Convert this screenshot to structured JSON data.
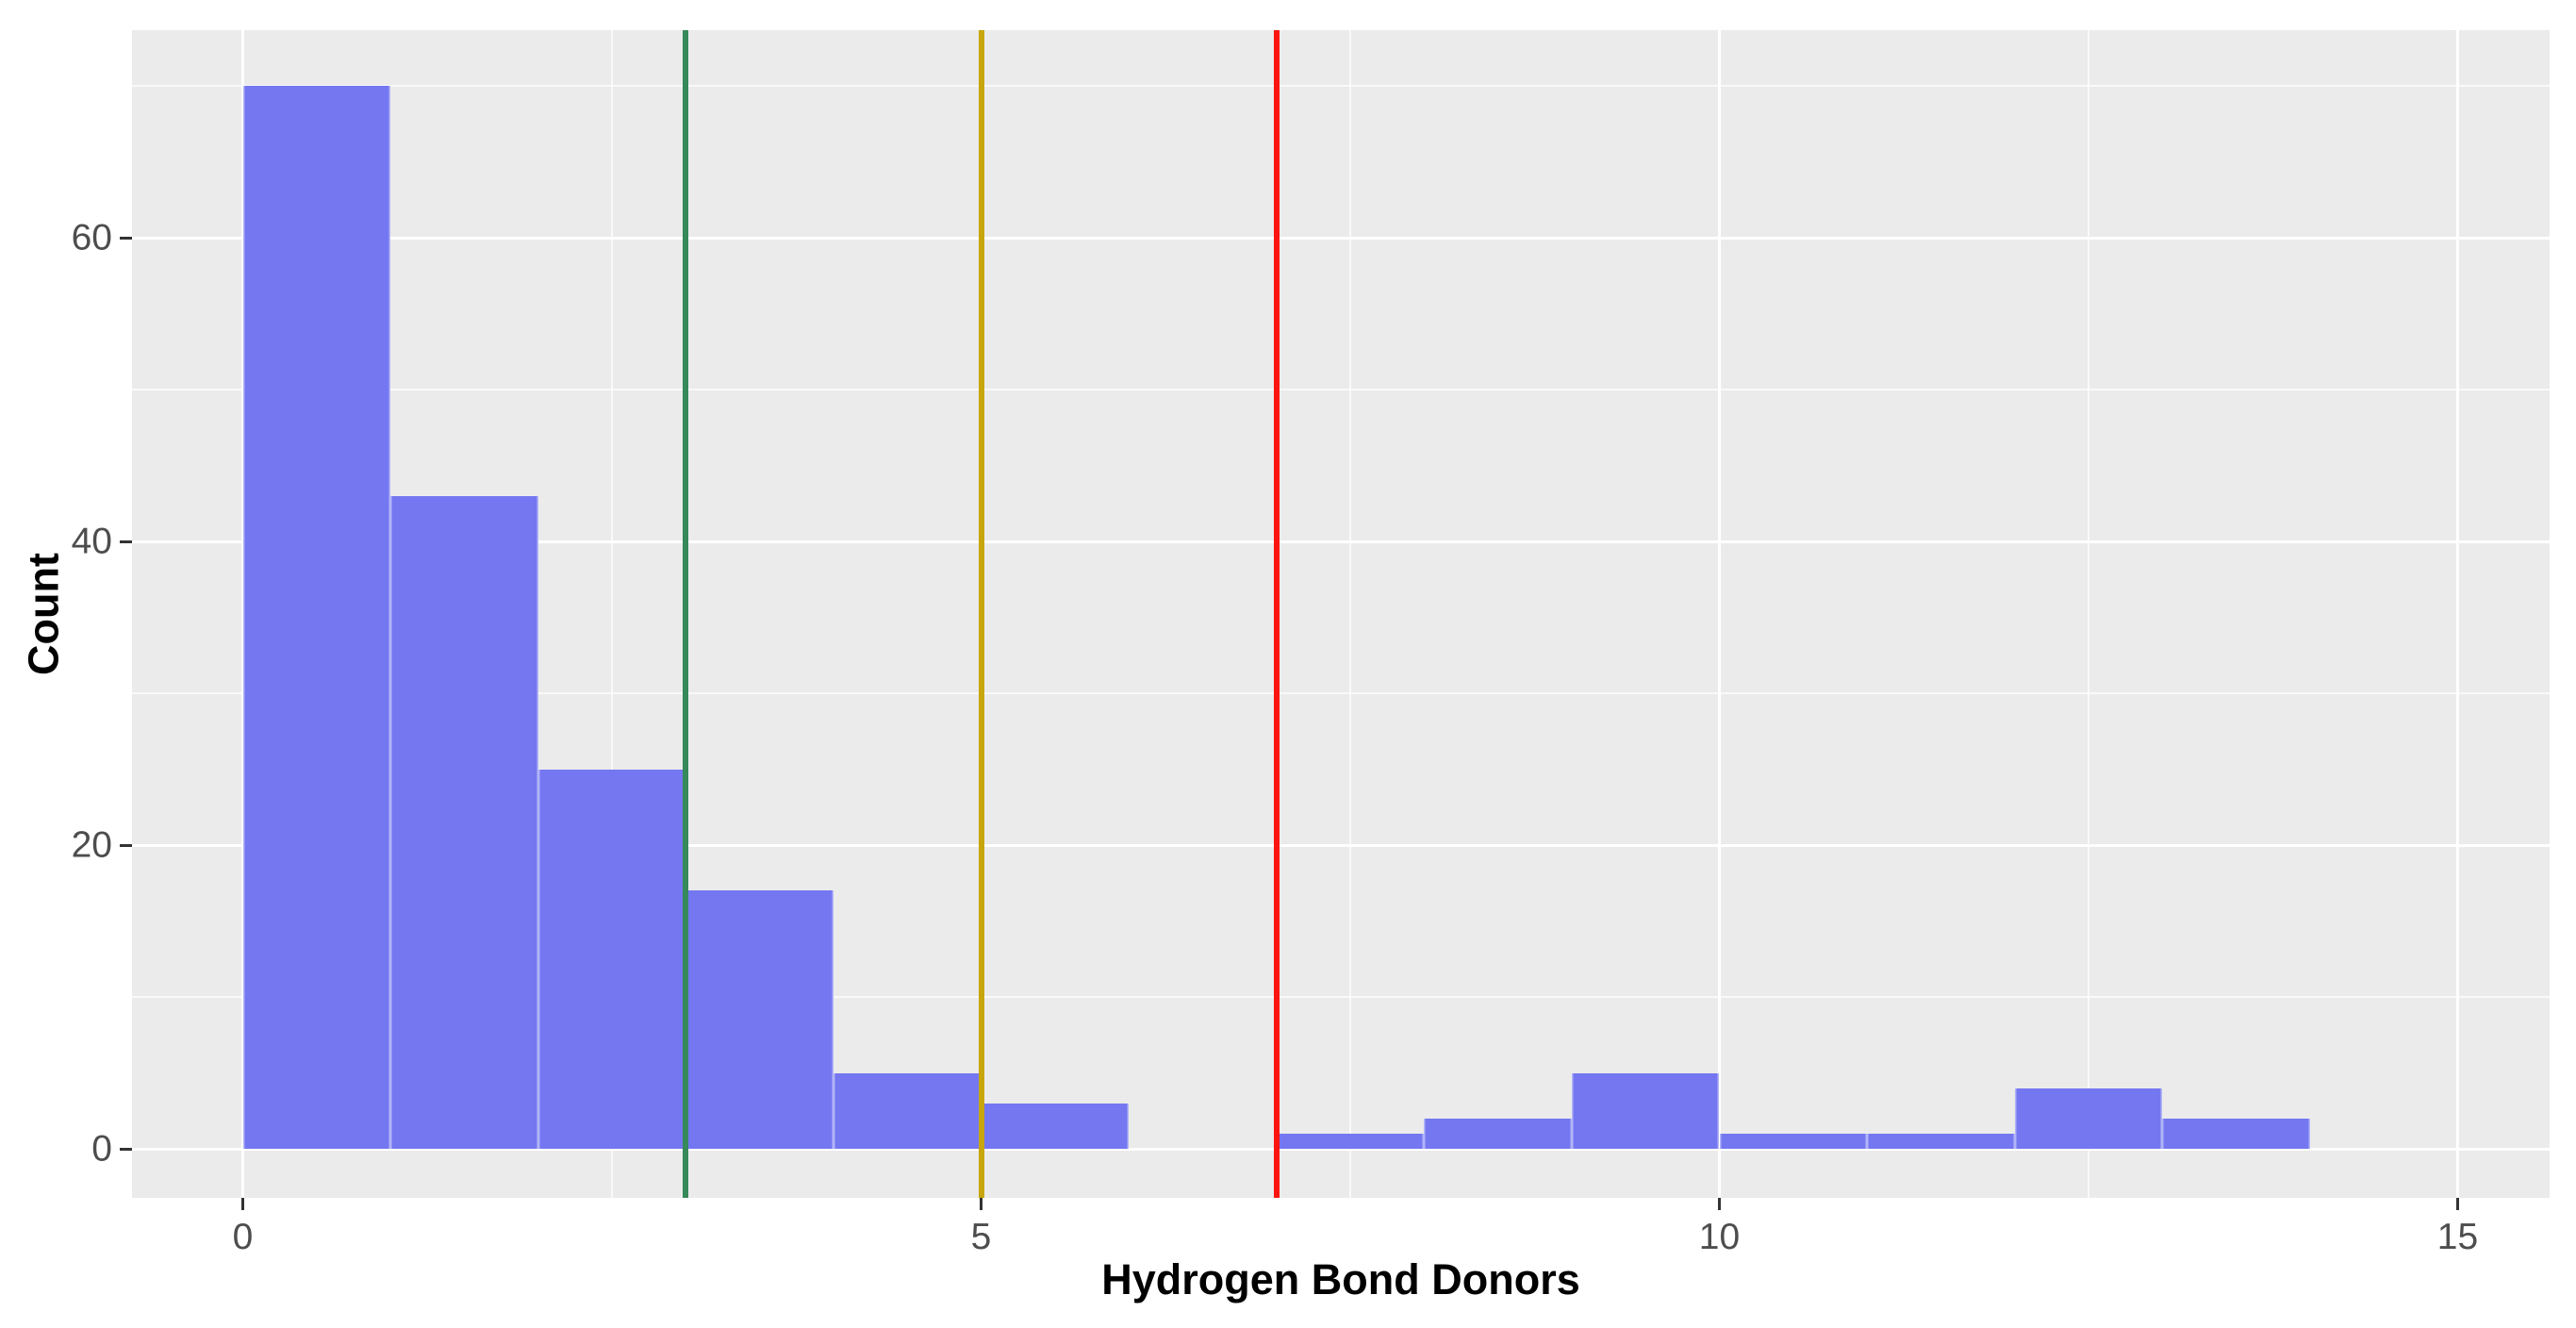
{
  "chart_data": {
    "type": "bar",
    "subtype": "histogram",
    "title": "",
    "xlabel": "Hydrogen Bond Donors",
    "ylabel": "Count",
    "bins": {
      "bin_width": 1,
      "bin_edges": [
        0,
        1,
        2,
        3,
        4,
        5,
        6,
        7,
        8,
        9,
        10,
        11,
        12,
        13,
        14
      ],
      "counts": [
        70,
        43,
        25,
        17,
        5,
        3,
        0,
        1,
        2,
        5,
        1,
        1,
        4,
        2
      ]
    },
    "x_ticks": [
      0,
      5,
      10,
      15
    ],
    "x_minor_gridlines": [
      2.5,
      7.5,
      12.5
    ],
    "y_ticks": [
      0,
      20,
      40,
      60
    ],
    "y_minor_gridlines": [
      10,
      30,
      50,
      70
    ],
    "xlim": [
      -0.75,
      15.65
    ],
    "ylim": [
      -3.5,
      73.5
    ],
    "grid": "on",
    "legend": "none",
    "vlines": [
      {
        "x": 3,
        "color": "#35895a",
        "name": "green-threshold-line"
      },
      {
        "x": 5,
        "color": "#c7a50b",
        "name": "gold-threshold-line"
      },
      {
        "x": 7,
        "color": "#fb150e",
        "name": "red-threshold-line"
      }
    ],
    "colors": {
      "bar_fill": "#7477f0",
      "panel_background": "#ebebeb",
      "gridline": "#ffffff",
      "tick_label": "#4d4d4d",
      "axis_title": "#000000",
      "tick_mark": "#333333",
      "outer_background": "#ffffff"
    }
  }
}
